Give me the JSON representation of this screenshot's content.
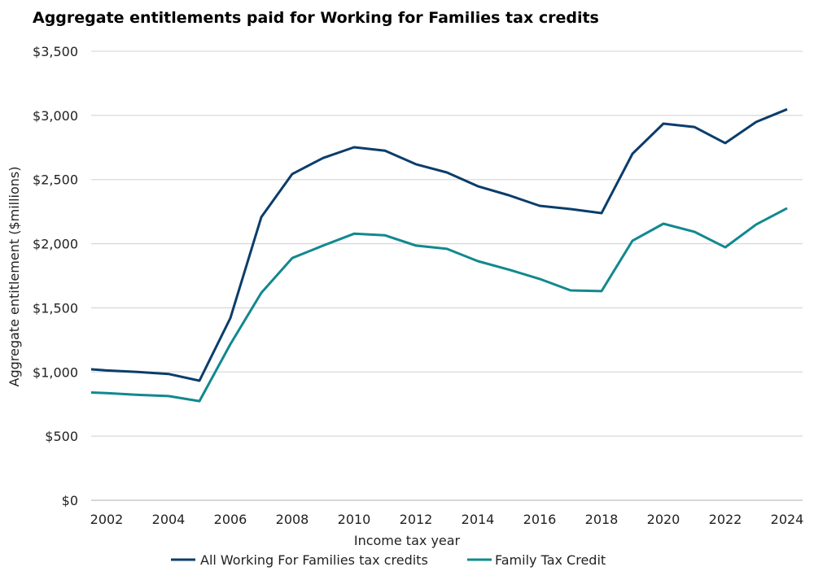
{
  "chart_data": {
    "type": "line",
    "title": "Aggregate entitlements paid for Working for Families tax credits",
    "xlabel": "Income tax year",
    "ylabel": "Aggregate entitlement ($millions)",
    "xlim": [
      2001.5,
      2024.5
    ],
    "ylim": [
      0,
      3500
    ],
    "grid": "horizontal",
    "legend_position": "bottom",
    "x_ticks": [
      2002,
      2004,
      2006,
      2008,
      2010,
      2012,
      2014,
      2016,
      2018,
      2020,
      2022,
      2024
    ],
    "y_ticks": [
      0,
      500,
      1000,
      1500,
      2000,
      2500,
      3000,
      3500
    ],
    "y_tick_labels": [
      "$0",
      "$500",
      "$1,000",
      "$1,500",
      "$2,000",
      "$2,500",
      "$3,000",
      "$3,500"
    ],
    "x": [
      2001,
      2002,
      2003,
      2004,
      2005,
      2006,
      2007,
      2008,
      2009,
      2010,
      2011,
      2012,
      2013,
      2014,
      2015,
      2016,
      2017,
      2018,
      2019,
      2020,
      2021,
      2022,
      2023,
      2024
    ],
    "series": [
      {
        "name": "All Working For Families tax credits",
        "color": "#0b3d6b",
        "values": [
          1030,
          1012,
          1000,
          985,
          932,
          1420,
          2207,
          2543,
          2668,
          2752,
          2725,
          2619,
          2555,
          2448,
          2378,
          2295,
          2270,
          2238,
          2701,
          2936,
          2910,
          2784,
          2949,
          3048
        ]
      },
      {
        "name": "Family Tax Credit",
        "color": "#12888f",
        "values": [
          845,
          835,
          822,
          812,
          773,
          1217,
          1617,
          1888,
          1985,
          2078,
          2065,
          1985,
          1960,
          1864,
          1798,
          1725,
          1636,
          1630,
          2023,
          2156,
          2093,
          1972,
          2150,
          2277
        ]
      }
    ]
  }
}
